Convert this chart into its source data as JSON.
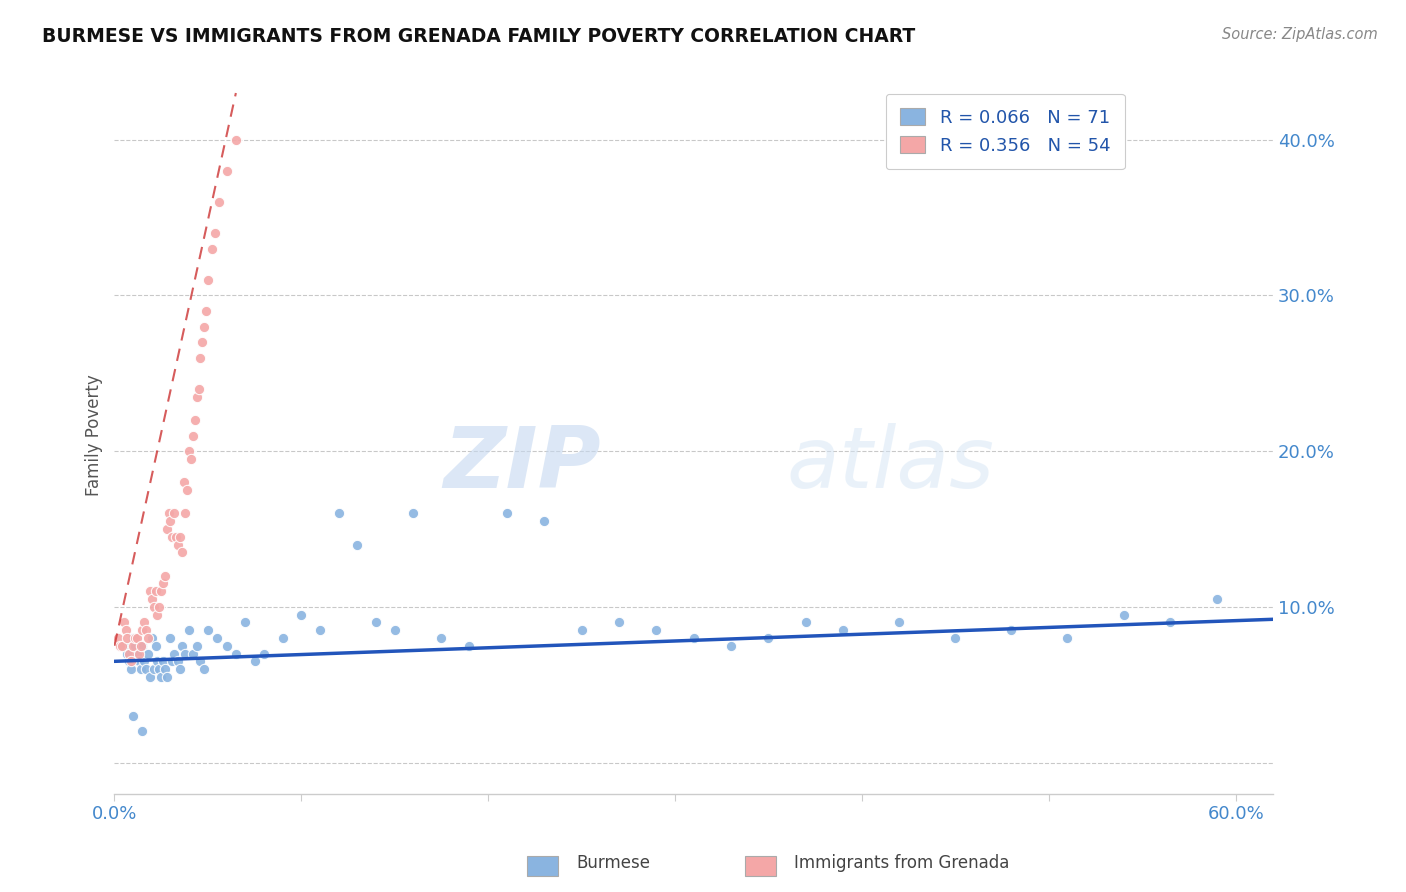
{
  "title": "BURMESE VS IMMIGRANTS FROM GRENADA FAMILY POVERTY CORRELATION CHART",
  "source": "Source: ZipAtlas.com",
  "ylabel": "Family Poverty",
  "legend_blue_r": "R = 0.066",
  "legend_blue_n": "N = 71",
  "legend_pink_r": "R = 0.356",
  "legend_pink_n": "N = 54",
  "legend_label_blue": "Burmese",
  "legend_label_pink": "Immigrants from Grenada",
  "ytick_vals": [
    0.0,
    0.1,
    0.2,
    0.3,
    0.4
  ],
  "ytick_labels": [
    "",
    "10.0%",
    "20.0%",
    "30.0%",
    "40.0%"
  ],
  "xtick_vals": [
    0.0,
    0.1,
    0.2,
    0.3,
    0.4,
    0.5,
    0.6
  ],
  "xtick_labels": [
    "0.0%",
    "",
    "",
    "",
    "",
    "",
    "60.0%"
  ],
  "xlim": [
    0.0,
    0.62
  ],
  "ylim": [
    -0.02,
    0.44
  ],
  "blue_color": "#8ab4e0",
  "pink_color": "#f4a7a7",
  "blue_line_color": "#2255bb",
  "pink_line_color": "#cc3333",
  "watermark_zip": "ZIP",
  "watermark_atlas": "atlas",
  "blue_scatter_x": [
    0.005,
    0.007,
    0.008,
    0.009,
    0.01,
    0.011,
    0.012,
    0.013,
    0.014,
    0.015,
    0.016,
    0.017,
    0.018,
    0.019,
    0.02,
    0.021,
    0.022,
    0.023,
    0.024,
    0.025,
    0.026,
    0.027,
    0.028,
    0.03,
    0.031,
    0.032,
    0.034,
    0.035,
    0.036,
    0.038,
    0.04,
    0.042,
    0.044,
    0.046,
    0.048,
    0.05,
    0.055,
    0.06,
    0.065,
    0.07,
    0.075,
    0.08,
    0.09,
    0.1,
    0.11,
    0.12,
    0.13,
    0.14,
    0.15,
    0.16,
    0.175,
    0.19,
    0.21,
    0.23,
    0.25,
    0.27,
    0.29,
    0.31,
    0.33,
    0.35,
    0.37,
    0.39,
    0.42,
    0.45,
    0.48,
    0.51,
    0.54,
    0.565,
    0.59,
    0.01,
    0.015
  ],
  "blue_scatter_y": [
    0.075,
    0.07,
    0.065,
    0.06,
    0.08,
    0.075,
    0.07,
    0.065,
    0.06,
    0.075,
    0.065,
    0.06,
    0.07,
    0.055,
    0.08,
    0.06,
    0.075,
    0.065,
    0.06,
    0.055,
    0.065,
    0.06,
    0.055,
    0.08,
    0.065,
    0.07,
    0.065,
    0.06,
    0.075,
    0.07,
    0.085,
    0.07,
    0.075,
    0.065,
    0.06,
    0.085,
    0.08,
    0.075,
    0.07,
    0.09,
    0.065,
    0.07,
    0.08,
    0.095,
    0.085,
    0.16,
    0.14,
    0.09,
    0.085,
    0.16,
    0.08,
    0.075,
    0.16,
    0.155,
    0.085,
    0.09,
    0.085,
    0.08,
    0.075,
    0.08,
    0.09,
    0.085,
    0.09,
    0.08,
    0.085,
    0.08,
    0.095,
    0.09,
    0.105,
    0.03,
    0.02
  ],
  "pink_scatter_x": [
    0.002,
    0.003,
    0.004,
    0.005,
    0.006,
    0.007,
    0.008,
    0.009,
    0.01,
    0.011,
    0.012,
    0.013,
    0.014,
    0.015,
    0.016,
    0.017,
    0.018,
    0.019,
    0.02,
    0.021,
    0.022,
    0.023,
    0.024,
    0.025,
    0.026,
    0.027,
    0.028,
    0.029,
    0.03,
    0.031,
    0.032,
    0.033,
    0.034,
    0.035,
    0.036,
    0.037,
    0.038,
    0.039,
    0.04,
    0.041,
    0.042,
    0.043,
    0.044,
    0.045,
    0.046,
    0.047,
    0.048,
    0.049,
    0.05,
    0.052,
    0.054,
    0.056,
    0.06,
    0.065
  ],
  "pink_scatter_y": [
    0.08,
    0.075,
    0.075,
    0.09,
    0.085,
    0.08,
    0.07,
    0.065,
    0.075,
    0.08,
    0.08,
    0.07,
    0.075,
    0.085,
    0.09,
    0.085,
    0.08,
    0.11,
    0.105,
    0.1,
    0.11,
    0.095,
    0.1,
    0.11,
    0.115,
    0.12,
    0.15,
    0.16,
    0.155,
    0.145,
    0.16,
    0.145,
    0.14,
    0.145,
    0.135,
    0.18,
    0.16,
    0.175,
    0.2,
    0.195,
    0.21,
    0.22,
    0.235,
    0.24,
    0.26,
    0.27,
    0.28,
    0.29,
    0.31,
    0.33,
    0.34,
    0.36,
    0.38,
    0.4
  ],
  "blue_trend_x": [
    0.0,
    0.62
  ],
  "blue_trend_y": [
    0.065,
    0.092
  ],
  "pink_trend_x": [
    0.0,
    0.065
  ],
  "pink_trend_y": [
    0.075,
    0.43
  ]
}
